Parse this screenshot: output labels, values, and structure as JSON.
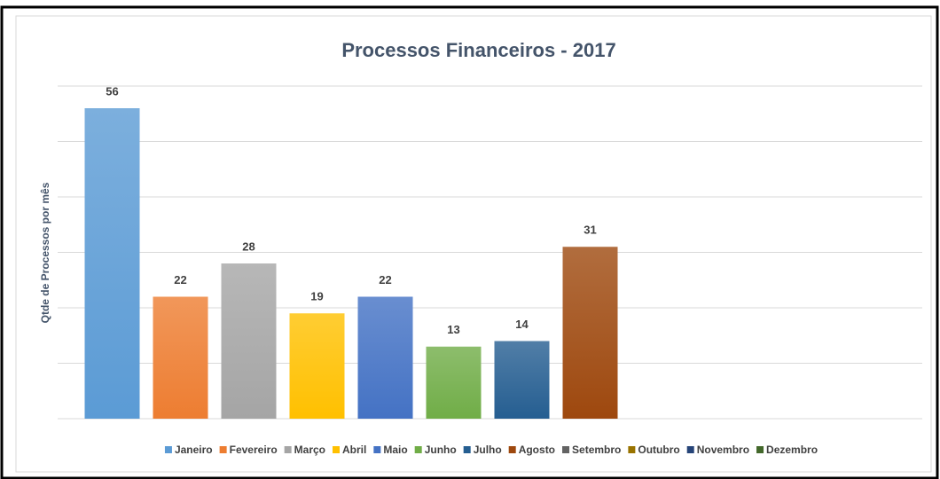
{
  "chart_data": {
    "type": "bar",
    "title": "Processos Financeiros - 2017",
    "ylabel": "Qtde de Processos por mês",
    "categories": [
      "Janeiro",
      "Fevereiro",
      "Março",
      "Abril",
      "Maio",
      "Junho",
      "Julho",
      "Agosto",
      "Setembro",
      "Outubro",
      "Novembro",
      "Dezembro"
    ],
    "values": [
      56,
      22,
      28,
      19,
      22,
      13,
      14,
      31,
      null,
      null,
      null,
      null
    ],
    "colors": [
      "#5b9bd5",
      "#ed7d31",
      "#a5a5a5",
      "#ffc000",
      "#4472c4",
      "#70ad47",
      "#255e91",
      "#9e480e",
      "#636363",
      "#997300",
      "#264478",
      "#43682b"
    ],
    "ylim": [
      0,
      60
    ],
    "yticks": [
      0,
      10,
      20,
      30,
      40,
      50,
      60
    ],
    "grid": true,
    "legend": "bottom"
  }
}
